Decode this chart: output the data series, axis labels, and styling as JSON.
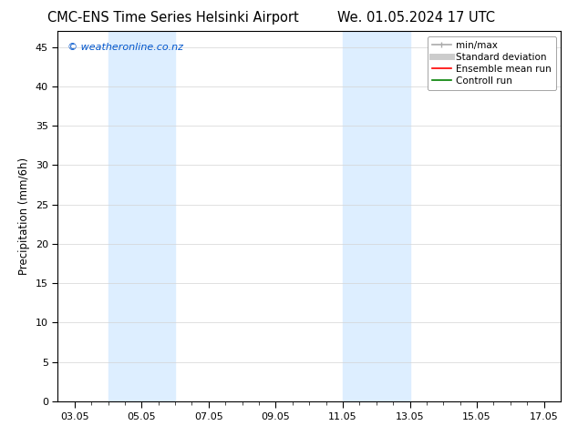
{
  "title_left": "CMC-ENS Time Series Helsinki Airport",
  "title_right": "We. 01.05.2024 17 UTC",
  "ylabel": "Precipitation (mm/6h)",
  "watermark": "© weatheronline.co.nz",
  "xlim_start": 2.5,
  "xlim_end": 17.5,
  "ylim": [
    0,
    47
  ],
  "yticks": [
    0,
    5,
    10,
    15,
    20,
    25,
    30,
    35,
    40,
    45
  ],
  "xtick_labels": [
    "03.05",
    "05.05",
    "07.05",
    "09.05",
    "11.05",
    "13.05",
    "15.05",
    "17.05"
  ],
  "xtick_positions": [
    3,
    5,
    7,
    9,
    11,
    13,
    15,
    17
  ],
  "shaded_regions": [
    {
      "xmin": 4.0,
      "xmax": 6.0
    },
    {
      "xmin": 11.0,
      "xmax": 13.0
    }
  ],
  "shade_color": "#ddeeff",
  "background_color": "#ffffff",
  "plot_bg_color": "#ffffff",
  "legend_entries": [
    {
      "label": "min/max",
      "color": "#aaaaaa",
      "lw": 1.2,
      "style": "solid"
    },
    {
      "label": "Standard deviation",
      "color": "#cccccc",
      "lw": 5,
      "style": "solid"
    },
    {
      "label": "Ensemble mean run",
      "color": "#ff0000",
      "lw": 1.2,
      "style": "solid"
    },
    {
      "label": "Controll run",
      "color": "#008000",
      "lw": 1.2,
      "style": "solid"
    }
  ],
  "title_fontsize": 10.5,
  "watermark_color": "#0055cc",
  "watermark_fontsize": 8,
  "axis_label_fontsize": 8.5,
  "tick_fontsize": 8,
  "legend_fontsize": 7.5
}
